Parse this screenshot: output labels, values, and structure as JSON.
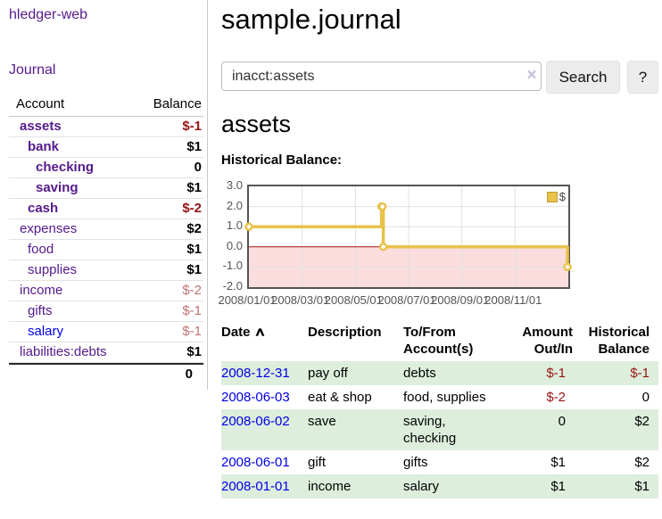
{
  "sidebar": {
    "brand": "hledger-web",
    "journal_link": "Journal",
    "accounts_header": {
      "account": "Account",
      "balance": "Balance"
    },
    "accounts": [
      {
        "name": "assets",
        "balance": "$-1"
      },
      {
        "name": "bank",
        "balance": "$1"
      },
      {
        "name": "checking",
        "balance": "0"
      },
      {
        "name": "saving",
        "balance": "$1"
      },
      {
        "name": "cash",
        "balance": "$-2"
      },
      {
        "name": "expenses",
        "balance": "$2"
      },
      {
        "name": "food",
        "balance": "$1"
      },
      {
        "name": "supplies",
        "balance": "$1"
      },
      {
        "name": "income",
        "balance": "$-2"
      },
      {
        "name": "gifts",
        "balance": "$-1"
      },
      {
        "name": "salary",
        "balance": "$-1"
      },
      {
        "name": "liabilities:debts",
        "balance": "$1"
      }
    ],
    "total": "0"
  },
  "header": {
    "title": "sample.journal"
  },
  "search": {
    "value": "inacct:assets",
    "clear_icon": "×",
    "button": "Search",
    "help_button": "?"
  },
  "main": {
    "account_title": "assets",
    "chart_title": "Historical Balance:"
  },
  "chart_data": {
    "type": "line",
    "subtype": "step",
    "title": "Historical Balance:",
    "x_range": [
      "2008-01-01",
      "2009-01-01"
    ],
    "ylim": [
      -2,
      3
    ],
    "yticks": [
      3.0,
      2.0,
      1.0,
      0.0,
      -1.0,
      -2.0
    ],
    "xtick_labels": [
      "2008/01/01",
      "2008/03/01",
      "2008/05/01",
      "2008/07/01",
      "2008/09/01",
      "2008/11/01"
    ],
    "grid": true,
    "legend_position": "top-right",
    "series": [
      {
        "name": "$",
        "color": "#e9c24a",
        "points": [
          [
            "2008-01-01",
            1
          ],
          [
            "2008-06-01",
            2
          ],
          [
            "2008-06-02",
            2
          ],
          [
            "2008-06-03",
            0
          ],
          [
            "2008-12-31",
            -1
          ]
        ]
      }
    ],
    "negative_region_color": "#fbdddd",
    "zero_line_color": "#a01010",
    "grid_color": "#e0e0e0",
    "border_color": "#545454",
    "axis_text_color": "#545454"
  },
  "register": {
    "columns": [
      "Date",
      "Description",
      "To/From Account(s)",
      "Amount Out/In",
      "Historical Balance"
    ],
    "sort_icon": "∧",
    "rows": [
      {
        "date": "2008-12-31",
        "description": "pay off",
        "accounts": "debts",
        "amount": "$-1",
        "balance": "$-1"
      },
      {
        "date": "2008-06-03",
        "description": "eat & shop",
        "accounts": "food, supplies",
        "amount": "$-2",
        "balance": "0"
      },
      {
        "date": "2008-06-02",
        "description": "save",
        "accounts": "saving, checking",
        "amount": "0",
        "balance": "$2"
      },
      {
        "date": "2008-06-01",
        "description": "gift",
        "accounts": "gifts",
        "amount": "$1",
        "balance": "$2"
      },
      {
        "date": "2008-01-01",
        "description": "income",
        "accounts": "salary",
        "amount": "$1",
        "balance": "$1"
      }
    ]
  },
  "colors": {
    "link_purple": "#551a8b",
    "link_blue": "#0000e6",
    "negative_strong": "#941414",
    "negative_light": "#c27272",
    "row_stripe_green": "#ddeedd",
    "series_gold": "#e9c24a",
    "chart_negative_region": "#fbdddd"
  }
}
